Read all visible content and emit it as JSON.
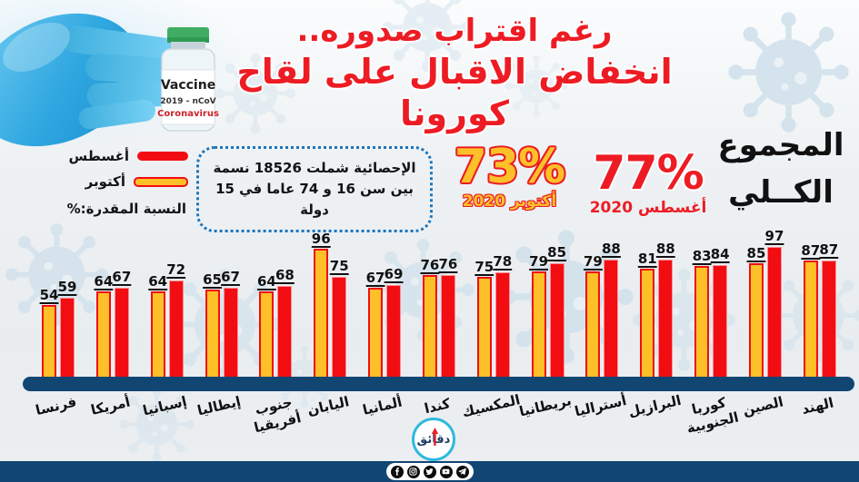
{
  "title": {
    "line1": "رغم اقتراب صدوره..",
    "line2": "انخفاض الاقبال على لقاح كورونا"
  },
  "legend": {
    "august_label": "أغسطس",
    "october_label": "أكتوبر",
    "note": "النسبة المقدرة:%"
  },
  "stats_box": {
    "line1": "الإحصائية شملت 18526 نسمة",
    "line2": "بين سن 16 و 74 عاما في 15 دولة"
  },
  "totals": {
    "october_pct": "73%",
    "october_label": "أكتوبر 2020",
    "august_pct": "77%",
    "august_label": "أغسطس 2020",
    "heading_line1": "المجموع",
    "heading_line2": "الكــلي"
  },
  "vial": {
    "brand": "Vaccine",
    "sub": "2019 - nCoV",
    "name": "Coronavirus"
  },
  "logo": {
    "text": "دقائق"
  },
  "footer": {
    "social_icons": [
      "facebook-icon",
      "instagram-icon",
      "twitter-icon",
      "youtube-icon",
      "telegram-icon"
    ]
  },
  "colors": {
    "accent_red": "#ed1c24",
    "bar_red": "#f20d13",
    "bar_yellow": "#fdc029",
    "axis_navy": "#114673",
    "dotted_blue": "#1c75bc",
    "logo_cyan": "#2fb9dd"
  },
  "chart_data": {
    "type": "bar",
    "title": "انخفاض الاقبال على لقاح كورونا",
    "categories": [
      "فرنسا",
      "أمريكا",
      "إسبانيا",
      "إيطاليا",
      "جنوب\nأفريقيا",
      "اليابان",
      "ألمانيا",
      "كندا",
      "المكسيك",
      "بريطانيا",
      "أستراليا",
      "البرازيل",
      "كوريا\nالجنوبية",
      "الصين",
      "الهند"
    ],
    "series": [
      {
        "name": "أكتوبر",
        "color": "#fdc029",
        "values": [
          54,
          64,
          64,
          65,
          64,
          96,
          67,
          76,
          75,
          79,
          79,
          81,
          83,
          85,
          87
        ]
      },
      {
        "name": "أغسطس",
        "color": "#f20d13",
        "values": [
          59,
          67,
          72,
          67,
          68,
          75,
          69,
          76,
          78,
          85,
          88,
          88,
          84,
          97,
          87
        ]
      }
    ],
    "ylabel": "النسبة المقدرة %",
    "ylim": [
      0,
      100
    ],
    "grid": false,
    "legend_position": "top-left",
    "value_labels": true
  }
}
